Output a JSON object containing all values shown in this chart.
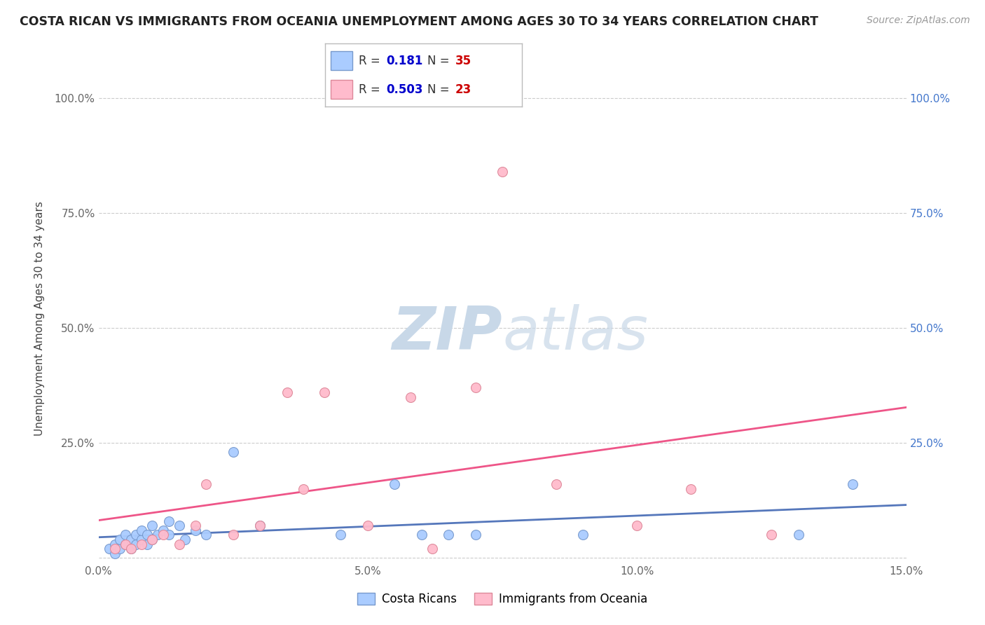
{
  "title": "COSTA RICAN VS IMMIGRANTS FROM OCEANIA UNEMPLOYMENT AMONG AGES 30 TO 34 YEARS CORRELATION CHART",
  "source": "Source: ZipAtlas.com",
  "ylabel": "Unemployment Among Ages 30 to 34 years",
  "xlim": [
    0.0,
    0.15
  ],
  "ylim": [
    -0.01,
    1.05
  ],
  "xticks": [
    0.0,
    0.05,
    0.1,
    0.15
  ],
  "xticklabels": [
    "0.0%",
    "5.0%",
    "10.0%",
    "15.0%"
  ],
  "yticks": [
    0.0,
    0.25,
    0.5,
    0.75,
    1.0
  ],
  "ylabels_left": [
    "",
    "25.0%",
    "50.0%",
    "75.0%",
    "100.0%"
  ],
  "ylabels_right": [
    "",
    "25.0%",
    "50.0%",
    "75.0%",
    "100.0%"
  ],
  "background_color": "#ffffff",
  "grid_color": "#cccccc",
  "blue_scatter_x": [
    0.002,
    0.003,
    0.003,
    0.004,
    0.004,
    0.005,
    0.005,
    0.006,
    0.006,
    0.007,
    0.007,
    0.008,
    0.008,
    0.009,
    0.009,
    0.01,
    0.01,
    0.011,
    0.012,
    0.013,
    0.013,
    0.015,
    0.016,
    0.018,
    0.02,
    0.025,
    0.03,
    0.045,
    0.055,
    0.06,
    0.065,
    0.07,
    0.09,
    0.13,
    0.14
  ],
  "blue_scatter_y": [
    0.02,
    0.01,
    0.03,
    0.02,
    0.04,
    0.03,
    0.05,
    0.02,
    0.04,
    0.03,
    0.05,
    0.04,
    0.06,
    0.03,
    0.05,
    0.04,
    0.07,
    0.05,
    0.06,
    0.05,
    0.08,
    0.07,
    0.04,
    0.06,
    0.05,
    0.23,
    0.07,
    0.05,
    0.16,
    0.05,
    0.05,
    0.05,
    0.05,
    0.05,
    0.16
  ],
  "pink_scatter_x": [
    0.003,
    0.005,
    0.006,
    0.008,
    0.01,
    0.012,
    0.015,
    0.018,
    0.02,
    0.025,
    0.03,
    0.035,
    0.038,
    0.042,
    0.05,
    0.058,
    0.062,
    0.07,
    0.075,
    0.085,
    0.1,
    0.11,
    0.125
  ],
  "pink_scatter_y": [
    0.02,
    0.03,
    0.02,
    0.03,
    0.04,
    0.05,
    0.03,
    0.07,
    0.16,
    0.05,
    0.07,
    0.36,
    0.15,
    0.36,
    0.07,
    0.35,
    0.02,
    0.37,
    0.84,
    0.16,
    0.07,
    0.15,
    0.05
  ],
  "blue_R": "0.181",
  "blue_N": "35",
  "pink_R": "0.503",
  "pink_N": "23",
  "blue_color": "#aaccff",
  "blue_edge_color": "#7799cc",
  "pink_color": "#ffbbcc",
  "pink_edge_color": "#dd8899",
  "blue_line_color": "#5577bb",
  "pink_line_color": "#ee5588",
  "legend_label_blue": "Costa Ricans",
  "legend_label_pink": "Immigrants from Oceania",
  "R_N_text_color": "#333333",
  "R_value_color": "#0000cc",
  "N_value_color": "#cc0000",
  "watermark_color": "#dde8f0"
}
